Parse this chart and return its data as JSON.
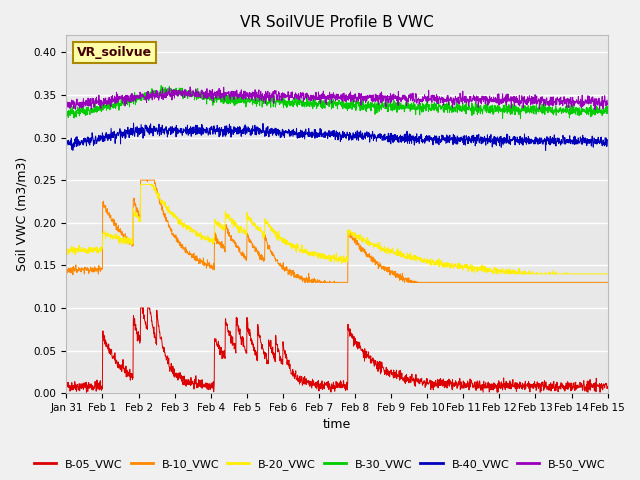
{
  "title": "VR SoilVUE Profile B VWC",
  "xlabel": "time",
  "ylabel": "Soil VWC (m3/m3)",
  "ylim": [
    0.0,
    0.42
  ],
  "yticks": [
    0.0,
    0.05,
    0.1,
    0.15,
    0.2,
    0.25,
    0.3,
    0.35,
    0.4
  ],
  "legend_label": "VR_soilvue",
  "colors": {
    "B-05_VWC": "#dd0000",
    "B-10_VWC": "#ff8800",
    "B-20_VWC": "#ffee00",
    "B-30_VWC": "#00cc00",
    "B-40_VWC": "#0000bb",
    "B-50_VWC": "#9900bb"
  },
  "n_points": 2000,
  "bg_color": "#e8e8e8",
  "plot_bg": "#f0f0f0",
  "grid_color": "#ffffff",
  "title_fontsize": 11,
  "tick_fontsize": 7.5,
  "label_fontsize": 9,
  "linewidth": 0.7
}
